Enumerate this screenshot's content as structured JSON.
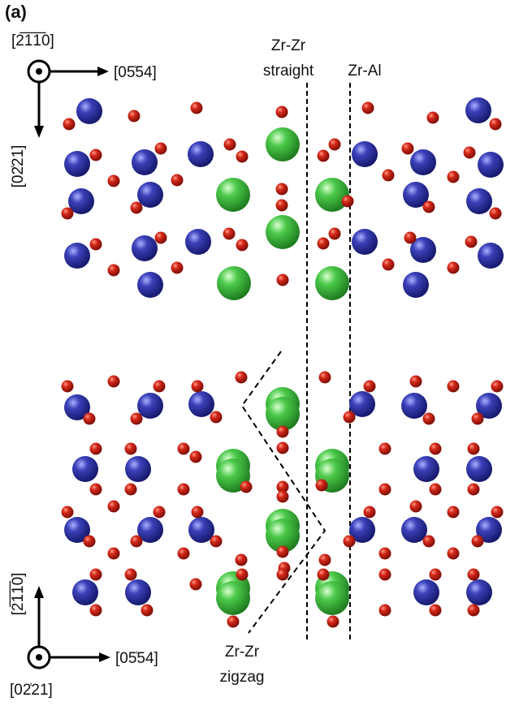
{
  "panel_label": "(a)",
  "top_axes": {
    "out_of_plane": "[2̅1̅1̅0]",
    "horizontal": "[05͑54]",
    "vertical": "[02͑21]"
  },
  "bottom_axes": {
    "vertical": "[2̅1̅1̅0]",
    "horizontal": "[05͑54]",
    "out_of_plane": "[02͑21]"
  },
  "annotations": {
    "zr_zr_straight": [
      "Zr-Zr",
      "straight"
    ],
    "zr_al": "Zr-Al",
    "zr_zr_zigzag": [
      "Zr-Zr",
      "zigzag"
    ]
  },
  "atom_colors": {
    "blue": "#2b2f9e",
    "red": "#c81b12",
    "green": "#3ab83a"
  }
}
